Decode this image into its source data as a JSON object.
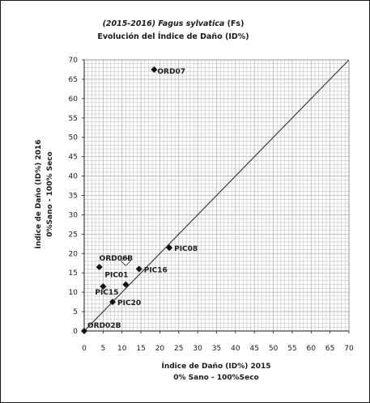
{
  "chart_data": {
    "type": "scatter",
    "title_line1_italic": "(2015-2016) ",
    "title_line1_species": "Fagus sylvatica",
    "title_line1_code": " (Fs)",
    "title_line2": "Evolución del Índice de Daño (ID%)",
    "xlabel_line1": "Índice de Daño (ID%) 2015",
    "xlabel_line2": "0% Sano - 100%Seco",
    "ylabel_line1": "Índice de Daño (ID%) 2016",
    "ylabel_line2": "0%Sano - 100% Seco",
    "xlim": [
      0,
      70
    ],
    "ylim": [
      0,
      70
    ],
    "xticks": [
      0,
      5,
      10,
      15,
      20,
      25,
      30,
      35,
      40,
      45,
      50,
      55,
      60,
      65,
      70
    ],
    "yticks": [
      0,
      5,
      10,
      15,
      20,
      25,
      30,
      35,
      40,
      45,
      50,
      55,
      60,
      65,
      70
    ],
    "grid": true,
    "reference_line": {
      "x": [
        0,
        70
      ],
      "y": [
        0,
        70
      ]
    },
    "points": [
      {
        "label": "ORD07",
        "x": 18.5,
        "y": 67.5,
        "marker": "diamond"
      },
      {
        "label": "PIC08",
        "x": 22.5,
        "y": 21.5,
        "marker": "diamond"
      },
      {
        "label": "PIC16",
        "x": 14.5,
        "y": 16.0,
        "marker": "diamond"
      },
      {
        "label": "ORD06B",
        "x": 4.0,
        "y": 16.5,
        "marker": "diamond"
      },
      {
        "label": "",
        "x": 11.0,
        "y": 18.0,
        "marker": "open-diamond"
      },
      {
        "label": "PIC01",
        "x": 11.0,
        "y": 12.0,
        "marker": "diamond"
      },
      {
        "label": "PIC15",
        "x": 5.0,
        "y": 11.5,
        "marker": "diamond"
      },
      {
        "label": "PIC20",
        "x": 7.5,
        "y": 7.5,
        "marker": "diamond"
      },
      {
        "label": "ORD02B",
        "x": 0.0,
        "y": 0.0,
        "marker": "diamond"
      }
    ],
    "colors": {
      "grid": "#b4b4b4",
      "axis": "#1a1a1a",
      "marker": "#111111"
    }
  }
}
